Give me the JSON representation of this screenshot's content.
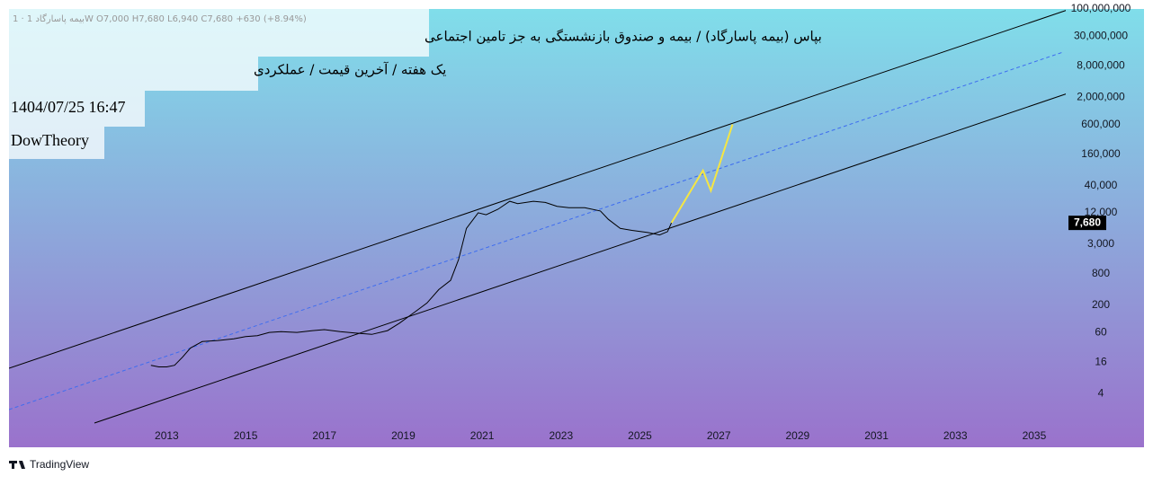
{
  "header": {
    "symbol_line": "بیمه پاسارگاد 1 · 1W  O7,000  H7,680  L6,940  C7,680  +630 (+8.94%)",
    "title": "بپاس (بیمه پاسارگاد) / بیمه و صندوق بازنشستگی به جز تامین اجتماعی",
    "subtitle": "یک هفته / آخرین قیمت / عملکردی",
    "datetime": "1404/07/25 16:47",
    "author": "DowTheory"
  },
  "footer": {
    "brand": "TradingView"
  },
  "chart_data": {
    "type": "line",
    "log_scale": true,
    "xlim": [
      2009,
      2035.8
    ],
    "xticks": [
      2013,
      2015,
      2017,
      2019,
      2021,
      2023,
      2025,
      2027,
      2029,
      2031,
      2033,
      2035
    ],
    "ylim": [
      0.37,
      100000000
    ],
    "yticks": [
      4,
      16,
      60,
      200,
      800,
      {
        "value": 3000,
        "label": "3,000"
      },
      {
        "value": 12000,
        "label": "12,000"
      },
      {
        "value": 40000,
        "label": "40,000"
      },
      {
        "value": 160000,
        "label": "160,000"
      },
      {
        "value": 600000,
        "label": "600,000"
      },
      {
        "value": 2000000,
        "label": "2,000,000"
      },
      {
        "value": 8000000,
        "label": "8,000,000"
      },
      {
        "value": 30000000,
        "label": "30,000,000"
      },
      {
        "value": 100000000,
        "label": "100,000,000"
      }
    ],
    "last_price": {
      "value": 7680,
      "label": "7,680"
    },
    "series": [
      {
        "color": "#000000",
        "x": [
          2012.6,
          2012.8,
          2013.0,
          2013.2,
          2013.4,
          2013.6,
          2013.9,
          2014.3,
          2014.7,
          2015.0,
          2015.3,
          2015.6,
          2015.9,
          2016.3,
          2016.7,
          2017.0,
          2017.4,
          2017.8,
          2018.2,
          2018.6,
          2018.9,
          2019.3,
          2019.6,
          2019.9,
          2020.2,
          2020.4,
          2020.6,
          2020.9,
          2021.1,
          2021.4,
          2021.7,
          2021.9,
          2022.3,
          2022.6,
          2022.9,
          2023.2,
          2023.6,
          2024.0,
          2024.2,
          2024.5,
          2024.8,
          2025.2,
          2025.5,
          2025.7,
          2025.8
        ],
        "values": [
          14,
          13,
          13,
          14,
          20,
          30,
          40,
          42,
          45,
          50,
          52,
          60,
          62,
          60,
          65,
          68,
          62,
          58,
          55,
          65,
          90,
          150,
          220,
          400,
          600,
          1500,
          6000,
          12000,
          11000,
          14000,
          20000,
          18000,
          20000,
          19000,
          16000,
          15000,
          15000,
          13000,
          9000,
          6000,
          5500,
          5000,
          4500,
          5200,
          7680
        ]
      },
      {
        "color": "#f5e642",
        "x": [
          2025.8,
          2026.6,
          2026.8,
          2027.35
        ],
        "values": [
          7680,
          78000,
          32000,
          600000
        ]
      }
    ]
  }
}
